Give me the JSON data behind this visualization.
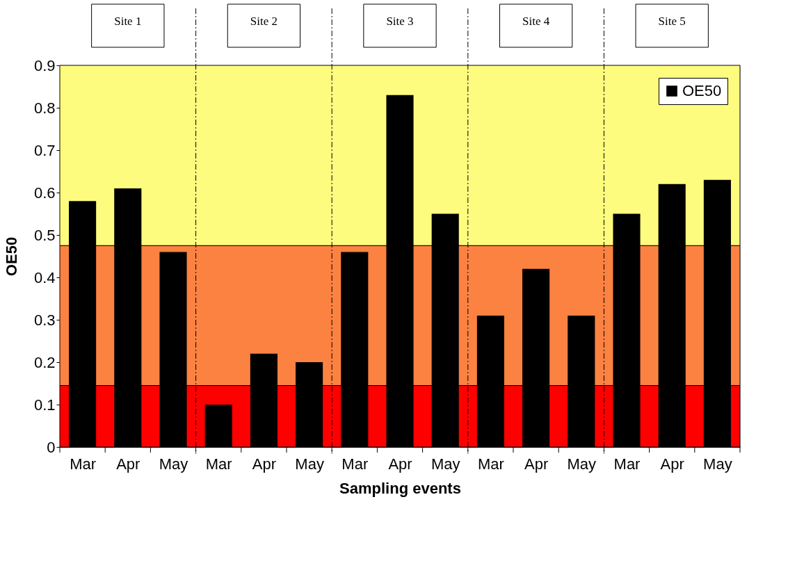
{
  "chart_data": {
    "type": "bar",
    "categories": [
      "Mar",
      "Apr",
      "May",
      "Mar",
      "Apr",
      "May",
      "Mar",
      "Apr",
      "May",
      "Mar",
      "Apr",
      "May",
      "Mar",
      "Apr",
      "May"
    ],
    "series": [
      {
        "name": "OE50",
        "color": "#000000",
        "values": [
          0.58,
          0.61,
          0.46,
          0.1,
          0.22,
          0.2,
          0.46,
          0.83,
          0.55,
          0.31,
          0.42,
          0.31,
          0.55,
          0.62,
          0.63
        ]
      }
    ],
    "xlabel": "Sampling events",
    "ylabel": "OE50",
    "ylim": [
      0,
      0.9
    ],
    "yticks": [
      0,
      0.1,
      0.2,
      0.3,
      0.4,
      0.5,
      0.6,
      0.7,
      0.8,
      0.9
    ],
    "bands": [
      {
        "axis": "y",
        "from": 0,
        "to": 0.145,
        "color": "#ff0000"
      },
      {
        "axis": "y",
        "from": 0.145,
        "to": 0.475,
        "color": "#fc8242"
      },
      {
        "axis": "y",
        "from": 0.475,
        "to": 0.9,
        "color": "#fefc7e"
      }
    ],
    "annotations": [
      "Site 1",
      "Site 2",
      "Site 3",
      "Site 4",
      "Site 5"
    ],
    "legend": "top right"
  }
}
